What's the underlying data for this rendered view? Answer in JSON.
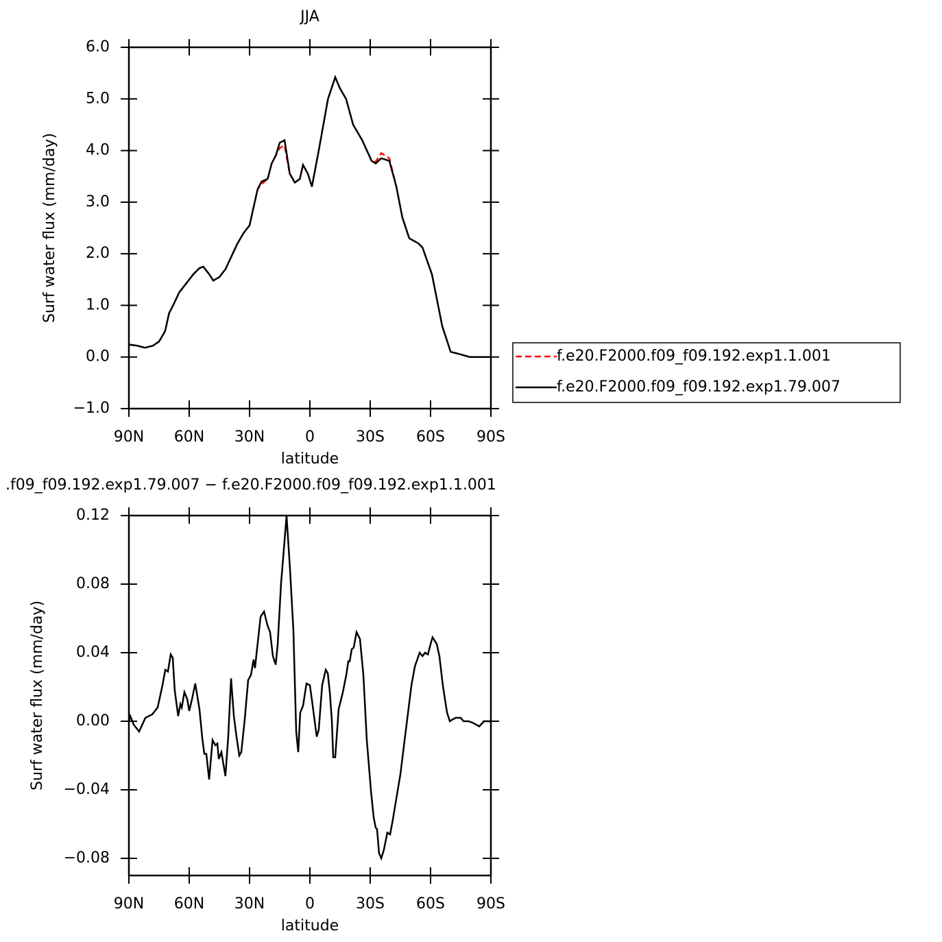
{
  "chart_data": [
    {
      "type": "line",
      "title": "JJA",
      "xlabel": "latitude",
      "ylabel": "Surf water flux (mm/day)",
      "xlim": [
        90,
        -90
      ],
      "ylim": [
        -1,
        6
      ],
      "xticks": [
        {
          "value": 90,
          "label": "90N"
        },
        {
          "value": 60,
          "label": "60N"
        },
        {
          "value": 30,
          "label": "30N"
        },
        0,
        {
          "value": -30,
          "label": "30S"
        },
        {
          "value": -60,
          "label": "60S"
        },
        {
          "value": -90,
          "label": "90S"
        }
      ],
      "yticks": [
        {
          "value": -1,
          "label": "−1.0"
        },
        {
          "value": 0,
          "label": "0.0"
        },
        {
          "value": 1,
          "label": "1.0"
        },
        {
          "value": 2,
          "label": "2.0"
        },
        {
          "value": 3,
          "label": "3.0"
        },
        {
          "value": 4,
          "label": "4.0"
        },
        {
          "value": 5,
          "label": "5.0"
        },
        {
          "value": 6,
          "label": "6.0"
        }
      ],
      "legend": "right",
      "x": [
        90,
        86,
        82,
        78,
        75,
        72,
        70,
        68,
        65,
        62,
        58,
        55,
        53,
        50,
        48,
        45,
        42,
        39,
        36,
        33,
        30,
        28,
        26,
        24,
        21,
        19,
        17,
        15,
        12.6,
        10,
        7.5,
        5,
        3.4,
        1,
        -1,
        -4.4,
        -9,
        -12.6,
        -15,
        -18,
        -21.5,
        -26,
        -30.7,
        -32.7,
        -35.5,
        -39.5,
        -43,
        -46,
        -49.4,
        -54,
        -56,
        -60.7,
        -65.8,
        -70,
        -74,
        -79.5,
        -85,
        -90
      ],
      "series": [
        {
          "name": "f.e20.F2000.f09_f09.192.exp1.1.001",
          "color": "#ff0000",
          "line_style": "dashed",
          "values": [
            0.24,
            0.22,
            0.18,
            0.22,
            0.3,
            0.5,
            0.85,
            1.0,
            1.25,
            1.4,
            1.6,
            1.72,
            1.75,
            1.6,
            1.48,
            1.55,
            1.7,
            1.95,
            2.2,
            2.4,
            2.55,
            2.9,
            3.25,
            3.35,
            3.45,
            3.75,
            3.9,
            4.05,
            4.1,
            3.55,
            3.38,
            3.45,
            3.72,
            3.55,
            3.3,
            4.0,
            5.0,
            5.42,
            5.2,
            5.0,
            4.5,
            4.2,
            3.8,
            3.78,
            3.95,
            3.85,
            3.3,
            2.7,
            2.3,
            2.2,
            2.12,
            1.6,
            0.6,
            0.1,
            0.06,
            0.0,
            0.0,
            0.0
          ]
        },
        {
          "name": "f.e20.F2000.f09_f09.192.exp1.79.007",
          "color": "#000000",
          "line_style": "solid",
          "values": [
            0.24,
            0.22,
            0.18,
            0.22,
            0.3,
            0.5,
            0.85,
            1.0,
            1.25,
            1.4,
            1.6,
            1.72,
            1.75,
            1.6,
            1.48,
            1.55,
            1.7,
            1.95,
            2.2,
            2.4,
            2.55,
            2.9,
            3.25,
            3.4,
            3.45,
            3.75,
            3.9,
            4.15,
            4.2,
            3.55,
            3.38,
            3.45,
            3.72,
            3.55,
            3.3,
            4.0,
            5.0,
            5.42,
            5.2,
            5.0,
            4.5,
            4.2,
            3.8,
            3.75,
            3.85,
            3.8,
            3.3,
            2.7,
            2.3,
            2.2,
            2.12,
            1.6,
            0.6,
            0.1,
            0.06,
            0.0,
            0.0,
            0.0
          ]
        }
      ]
    },
    {
      "type": "line",
      "title": ".f09_f09.192.exp1.79.007 − f.e20.F2000.f09_f09.192.exp1.1.001",
      "xlabel": "latitude",
      "ylabel": "Surf water flux (mm/day)",
      "xlim": [
        90,
        -90
      ],
      "ylim": [
        -0.09,
        0.12
      ],
      "xticks": [
        {
          "value": 90,
          "label": "90N"
        },
        {
          "value": 60,
          "label": "60N"
        },
        {
          "value": 30,
          "label": "30N"
        },
        0,
        {
          "value": -30,
          "label": "30S"
        },
        {
          "value": -60,
          "label": "60S"
        },
        {
          "value": -90,
          "label": "90S"
        }
      ],
      "yticks": [
        {
          "value": -0.08,
          "label": "−0.08"
        },
        {
          "value": -0.04,
          "label": "−0.04"
        },
        {
          "value": 0,
          "label": "0.00"
        },
        0.04,
        0.08,
        0.12
      ],
      "x": [
        90,
        89.3,
        87.6,
        84.9,
        81.8,
        78.4,
        75.7,
        73.3,
        71.9,
        70.6,
        69.2,
        68.2,
        67.2,
        65.5,
        64.4,
        63.7,
        62.4,
        61,
        60,
        58.6,
        57,
        54.9,
        53.5,
        52.5,
        51.5,
        50.1,
        48.4,
        47,
        46,
        45.3,
        44,
        42,
        40.6,
        39.2,
        37.8,
        36.5,
        35.1,
        34.1,
        32.4,
        30.7,
        29.3,
        28,
        27.3,
        26.2,
        24.5,
        22.8,
        21.1,
        19.8,
        18.4,
        17,
        16,
        14.3,
        12.9,
        11.6,
        9.9,
        8.2,
        6.8,
        5.8,
        4.8,
        3.4,
        1.7,
        0,
        -1.4,
        -3.4,
        -4.4,
        -6.1,
        -7.9,
        -8.9,
        -9.9,
        -10.9,
        -11.6,
        -12.6,
        -14.3,
        -16.4,
        -18.1,
        -19.1,
        -19.8,
        -20.8,
        -21.8,
        -23.2,
        -24.9,
        -26.6,
        -28.3,
        -30.4,
        -31.7,
        -32.7,
        -33.4,
        -34.4,
        -35.5,
        -36.8,
        -38.5,
        -39.9,
        -41.3,
        -43,
        -45,
        -47.1,
        -48.8,
        -50.5,
        -52.2,
        -54.6,
        -56,
        -57.3,
        -58.7,
        -60,
        -61,
        -63.1,
        -64.4,
        -66.1,
        -68.2,
        -69.6,
        -70.9,
        -72.6,
        -75,
        -76.4,
        -78.8,
        -81.2,
        -84.2,
        -86.6,
        -90
      ],
      "series": [
        {
          "color": "#000000",
          "line_style": "solid",
          "values": [
            0,
            0.003,
            -0.002,
            -0.006,
            0.002,
            0.004,
            0.008,
            0.021,
            0.03,
            0.029,
            0.039,
            0.037,
            0.018,
            0.003,
            0.01,
            0.008,
            0.017,
            0.013,
            0.006,
            0.013,
            0.022,
            0.007,
            -0.01,
            -0.019,
            -0.019,
            -0.034,
            -0.011,
            -0.014,
            -0.013,
            -0.022,
            -0.018,
            -0.032,
            -0.009,
            0.025,
            0.003,
            -0.009,
            -0.02,
            -0.018,
            0.001,
            0.024,
            0.027,
            0.036,
            0.031,
            0.043,
            0.061,
            0.064,
            0.056,
            0.052,
            0.038,
            0.033,
            0.045,
            0.081,
            0.101,
            0.12,
            0.089,
            0.053,
            -0.006,
            -0.018,
            0.005,
            0.009,
            0.022,
            0.021,
            0.009,
            -0.009,
            -0.005,
            0.021,
            0.03,
            0.028,
            0.017,
            0.001,
            -0.021,
            -0.021,
            0.007,
            0.017,
            0.027,
            0.035,
            0.035,
            0.042,
            0.043,
            0.052,
            0.048,
            0.027,
            -0.011,
            -0.041,
            -0.056,
            -0.062,
            -0.063,
            -0.077,
            -0.08,
            -0.075,
            -0.065,
            -0.066,
            -0.057,
            -0.045,
            -0.031,
            -0.011,
            0.005,
            0.021,
            0.032,
            0.04,
            0.038,
            0.04,
            0.039,
            0.045,
            0.049,
            0.045,
            0.038,
            0.021,
            0.005,
            0,
            0.001,
            0.002,
            0.002,
            0,
            0,
            -0.001,
            -0.003,
            0,
            0
          ]
        }
      ]
    }
  ]
}
